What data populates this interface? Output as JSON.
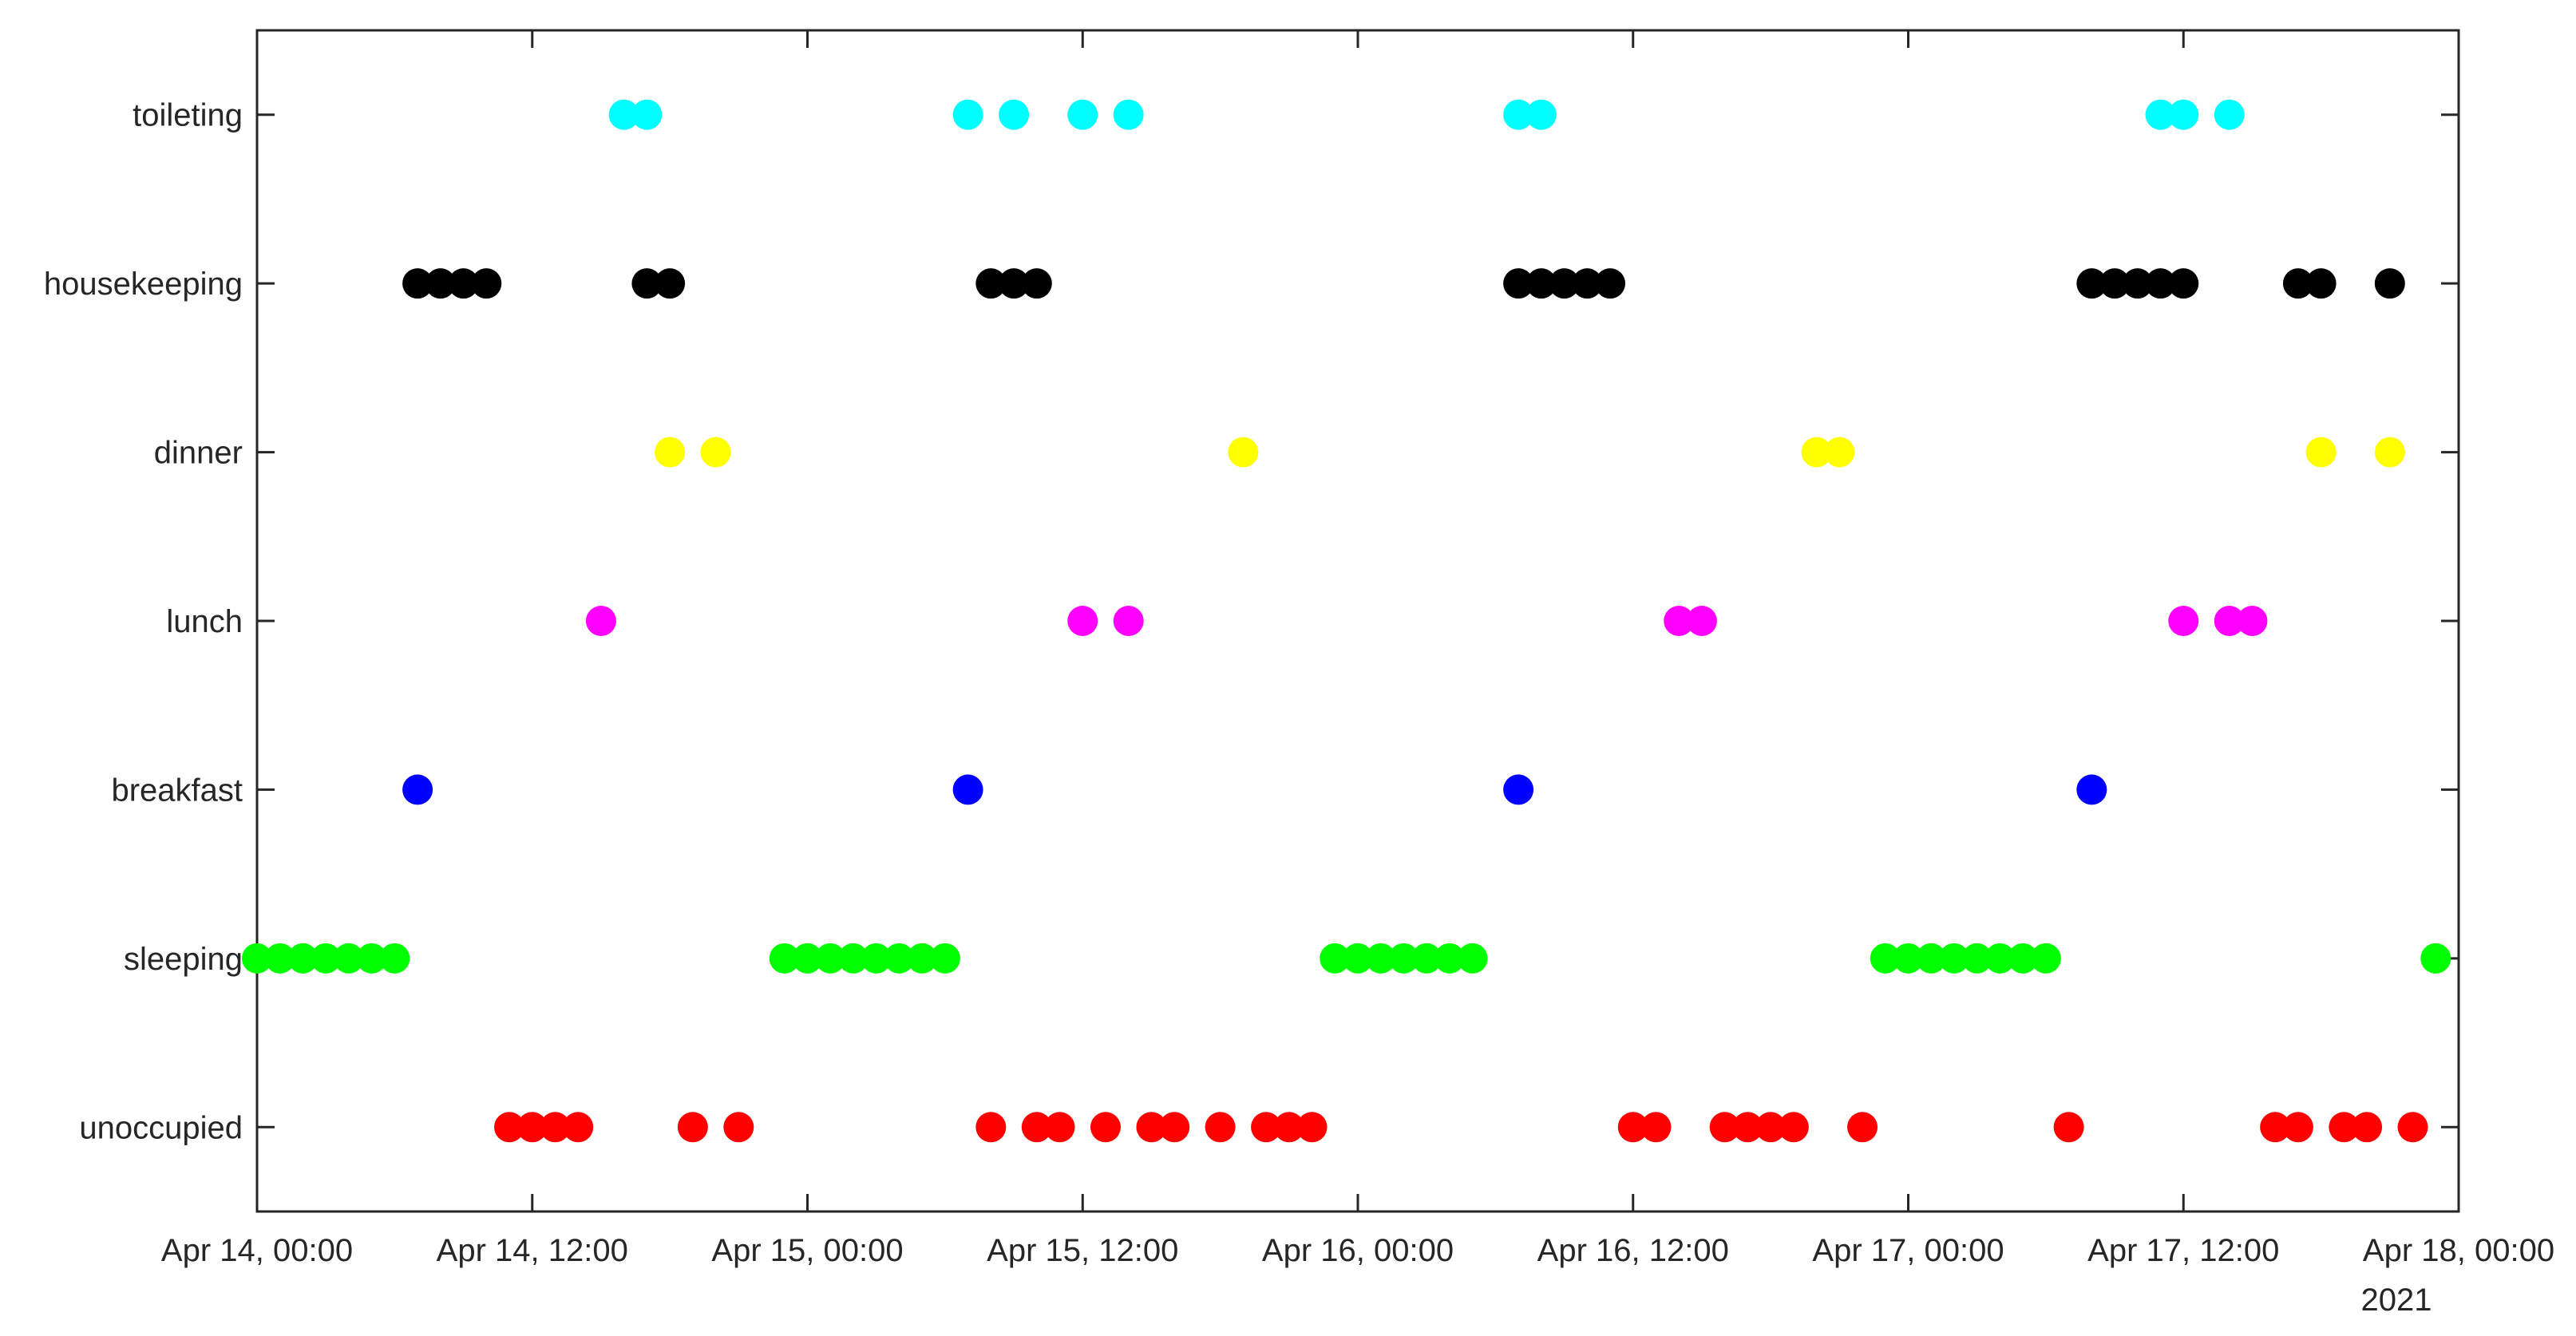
{
  "chart_data": {
    "type": "scatter",
    "title": "",
    "xlabel": "",
    "ylabel": "",
    "x_unit": "datetime",
    "xlim": [
      "2021-04-14 00:00",
      "2021-04-18 00:00"
    ],
    "year_label": "2021",
    "x_ticks": [
      "Apr 14, 00:00",
      "Apr 14, 12:00",
      "Apr 15, 00:00",
      "Apr 15, 12:00",
      "Apr 16, 00:00",
      "Apr 16, 12:00",
      "Apr 17, 00:00",
      "Apr 17, 12:00",
      "Apr 18, 00:00"
    ],
    "categories": [
      "unoccupied",
      "sleeping",
      "breakfast",
      "lunch",
      "dinner",
      "housekeeping",
      "toileting"
    ],
    "grid": false,
    "legend": "none",
    "colors": {
      "toileting": "#00ffff",
      "housekeeping": "#000000",
      "dinner": "#ffff00",
      "lunch": "#ff00ff",
      "breakfast": "#0000ff",
      "sleeping": "#00ff00",
      "unoccupied": "#ff0000"
    },
    "points": [
      {
        "category": "toileting",
        "x": [
          "2021-04-14 16:00",
          "2021-04-14 17:00",
          "2021-04-15 07:00",
          "2021-04-15 09:00",
          "2021-04-15 12:00",
          "2021-04-15 14:00",
          "2021-04-16 07:00",
          "2021-04-16 08:00",
          "2021-04-17 11:00",
          "2021-04-17 12:00",
          "2021-04-17 14:00"
        ]
      },
      {
        "category": "housekeeping",
        "x": [
          "2021-04-14 07:00",
          "2021-04-14 08:00",
          "2021-04-14 09:00",
          "2021-04-14 10:00",
          "2021-04-14 17:00",
          "2021-04-14 18:00",
          "2021-04-15 08:00",
          "2021-04-15 09:00",
          "2021-04-15 10:00",
          "2021-04-16 07:00",
          "2021-04-16 08:00",
          "2021-04-16 09:00",
          "2021-04-16 10:00",
          "2021-04-16 11:00",
          "2021-04-17 08:00",
          "2021-04-17 09:00",
          "2021-04-17 10:00",
          "2021-04-17 11:00",
          "2021-04-17 12:00",
          "2021-04-17 17:00",
          "2021-04-17 18:00",
          "2021-04-17 21:00"
        ]
      },
      {
        "category": "dinner",
        "x": [
          "2021-04-14 18:00",
          "2021-04-14 20:00",
          "2021-04-15 19:00",
          "2021-04-16 20:00",
          "2021-04-16 21:00",
          "2021-04-17 18:00",
          "2021-04-17 21:00"
        ]
      },
      {
        "category": "lunch",
        "x": [
          "2021-04-14 15:00",
          "2021-04-15 12:00",
          "2021-04-15 14:00",
          "2021-04-16 14:00",
          "2021-04-16 15:00",
          "2021-04-17 12:00",
          "2021-04-17 14:00",
          "2021-04-17 15:00"
        ]
      },
      {
        "category": "breakfast",
        "x": [
          "2021-04-14 07:00",
          "2021-04-15 07:00",
          "2021-04-16 07:00",
          "2021-04-17 08:00"
        ]
      },
      {
        "category": "sleeping",
        "x": [
          "2021-04-14 00:00",
          "2021-04-14 01:00",
          "2021-04-14 02:00",
          "2021-04-14 03:00",
          "2021-04-14 04:00",
          "2021-04-14 05:00",
          "2021-04-14 06:00",
          "2021-04-14 23:00",
          "2021-04-15 00:00",
          "2021-04-15 01:00",
          "2021-04-15 02:00",
          "2021-04-15 03:00",
          "2021-04-15 04:00",
          "2021-04-15 05:00",
          "2021-04-15 06:00",
          "2021-04-15 23:00",
          "2021-04-16 00:00",
          "2021-04-16 01:00",
          "2021-04-16 02:00",
          "2021-04-16 03:00",
          "2021-04-16 04:00",
          "2021-04-16 05:00",
          "2021-04-16 23:00",
          "2021-04-17 00:00",
          "2021-04-17 01:00",
          "2021-04-17 02:00",
          "2021-04-17 03:00",
          "2021-04-17 04:00",
          "2021-04-17 05:00",
          "2021-04-17 06:00",
          "2021-04-17 23:00"
        ]
      },
      {
        "category": "unoccupied",
        "x": [
          "2021-04-14 11:00",
          "2021-04-14 12:00",
          "2021-04-14 13:00",
          "2021-04-14 14:00",
          "2021-04-14 19:00",
          "2021-04-14 21:00",
          "2021-04-15 08:00",
          "2021-04-15 10:00",
          "2021-04-15 11:00",
          "2021-04-15 13:00",
          "2021-04-15 15:00",
          "2021-04-15 16:00",
          "2021-04-15 18:00",
          "2021-04-15 20:00",
          "2021-04-15 21:00",
          "2021-04-15 22:00",
          "2021-04-16 12:00",
          "2021-04-16 13:00",
          "2021-04-16 16:00",
          "2021-04-16 17:00",
          "2021-04-16 18:00",
          "2021-04-16 19:00",
          "2021-04-16 22:00",
          "2021-04-17 07:00",
          "2021-04-17 16:00",
          "2021-04-17 17:00",
          "2021-04-17 19:00",
          "2021-04-17 20:00",
          "2021-04-17 22:00"
        ]
      }
    ]
  }
}
